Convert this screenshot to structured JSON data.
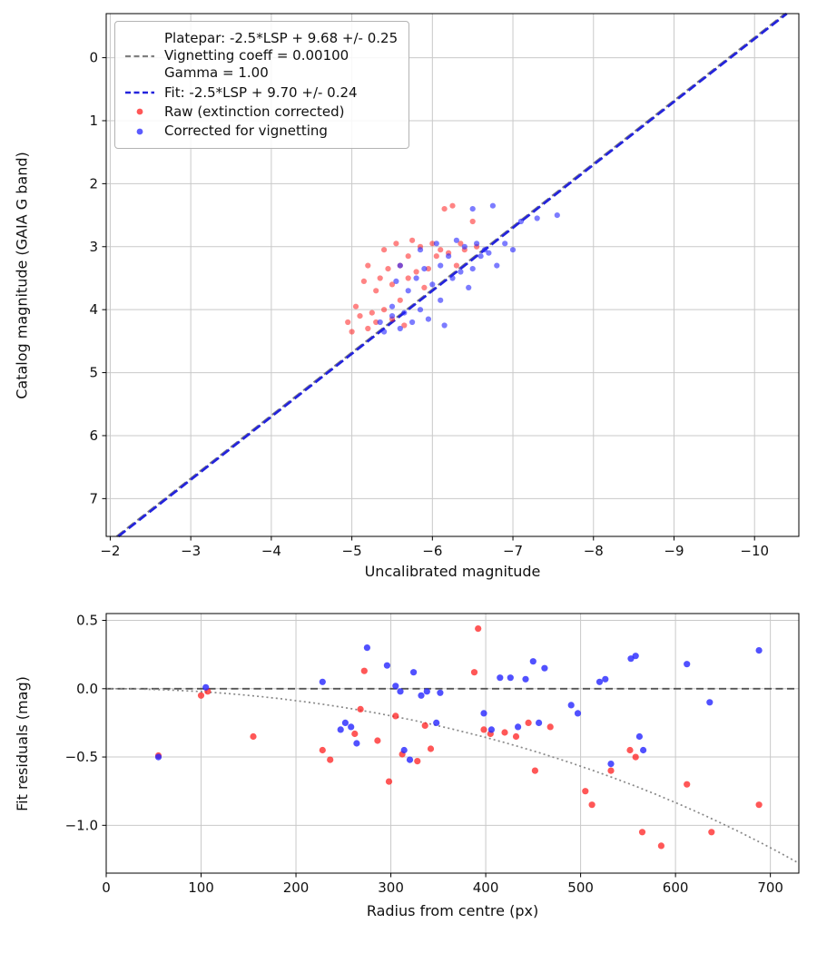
{
  "figure": {
    "background": "#ffffff",
    "spine_color": "#000000",
    "grid_color": "#c9c9c9"
  },
  "chart_data": [
    {
      "type": "scatter",
      "xlabel": "Uncalibrated magnitude",
      "ylabel": "Catalog magnitude (GAIA G band)",
      "x_inverted": true,
      "y_inverted": true,
      "xlim": [
        -1.95,
        -10.55
      ],
      "ylim": [
        -0.7,
        7.6
      ],
      "xticks": [
        -2,
        -3,
        -4,
        -5,
        -6,
        -7,
        -8,
        -9,
        -10
      ],
      "xtick_labels": [
        "−2",
        "−3",
        "−4",
        "−5",
        "−6",
        "−7",
        "−8",
        "−9",
        "−10"
      ],
      "yticks": [
        0,
        1,
        2,
        3,
        4,
        5,
        6,
        7
      ],
      "ytick_labels": [
        "0",
        "1",
        "2",
        "3",
        "4",
        "5",
        "6",
        "7"
      ],
      "grid": true,
      "legend_position": "upper left",
      "lines": [
        {
          "name": "platepar-line",
          "label_lines": [
            "Platepar: -2.5*LSP + 9.68 +/- 0.25",
            "Vignetting coeff = 0.00100",
            "Gamma = 1.00"
          ],
          "slope": 1,
          "intercept": 9.68,
          "color": "#808080",
          "dash": "dashed"
        },
        {
          "name": "fit-line",
          "label": "Fit: -2.5*LSP + 9.70 +/- 0.24",
          "slope": 1,
          "intercept": 9.7,
          "color": "#2323dc",
          "dash": "dashed"
        }
      ],
      "series": [
        {
          "name": "Raw (extinction corrected)",
          "color": "#ff1f1f",
          "alpha": 0.55,
          "points": [
            [
              -4.95,
              4.2
            ],
            [
              -5.0,
              4.35
            ],
            [
              -5.05,
              3.95
            ],
            [
              -5.1,
              4.1
            ],
            [
              -5.15,
              3.55
            ],
            [
              -5.2,
              4.3
            ],
            [
              -5.2,
              3.3
            ],
            [
              -5.25,
              4.05
            ],
            [
              -5.3,
              3.7
            ],
            [
              -5.3,
              4.2
            ],
            [
              -5.35,
              3.5
            ],
            [
              -5.4,
              4.0
            ],
            [
              -5.4,
              3.05
            ],
            [
              -5.45,
              3.35
            ],
            [
              -5.5,
              4.15
            ],
            [
              -5.5,
              3.6
            ],
            [
              -5.55,
              2.95
            ],
            [
              -5.6,
              3.85
            ],
            [
              -5.6,
              3.3
            ],
            [
              -5.65,
              4.25
            ],
            [
              -5.7,
              3.15
            ],
            [
              -5.7,
              3.5
            ],
            [
              -5.75,
              2.9
            ],
            [
              -5.8,
              3.4
            ],
            [
              -5.85,
              3.0
            ],
            [
              -5.9,
              3.65
            ],
            [
              -5.95,
              3.35
            ],
            [
              -6.0,
              2.95
            ],
            [
              -6.05,
              3.15
            ],
            [
              -6.1,
              3.05
            ],
            [
              -6.15,
              2.4
            ],
            [
              -6.2,
              3.1
            ],
            [
              -6.25,
              2.35
            ],
            [
              -6.3,
              3.3
            ],
            [
              -6.35,
              2.95
            ],
            [
              -6.4,
              3.05
            ],
            [
              -6.5,
              2.6
            ],
            [
              -6.55,
              3.0
            ]
          ]
        },
        {
          "name": "Corrected for vignetting",
          "color": "#2525ff",
          "alpha": 0.6,
          "points": [
            [
              -5.35,
              4.2
            ],
            [
              -5.4,
              4.35
            ],
            [
              -5.5,
              3.95
            ],
            [
              -5.5,
              4.1
            ],
            [
              -5.55,
              3.55
            ],
            [
              -5.6,
              4.3
            ],
            [
              -5.6,
              3.3
            ],
            [
              -5.65,
              4.05
            ],
            [
              -5.7,
              3.7
            ],
            [
              -5.75,
              4.2
            ],
            [
              -5.8,
              3.5
            ],
            [
              -5.85,
              4.0
            ],
            [
              -5.85,
              3.05
            ],
            [
              -5.9,
              3.35
            ],
            [
              -5.95,
              4.15
            ],
            [
              -6.0,
              3.6
            ],
            [
              -6.05,
              2.95
            ],
            [
              -6.1,
              3.85
            ],
            [
              -6.1,
              3.3
            ],
            [
              -6.15,
              4.25
            ],
            [
              -6.2,
              3.15
            ],
            [
              -6.25,
              3.5
            ],
            [
              -6.3,
              2.9
            ],
            [
              -6.35,
              3.4
            ],
            [
              -6.4,
              3.0
            ],
            [
              -6.45,
              3.65
            ],
            [
              -6.5,
              3.35
            ],
            [
              -6.5,
              2.4
            ],
            [
              -6.55,
              2.95
            ],
            [
              -6.6,
              3.15
            ],
            [
              -6.65,
              3.05
            ],
            [
              -6.7,
              3.1
            ],
            [
              -6.75,
              2.35
            ],
            [
              -6.8,
              3.3
            ],
            [
              -6.9,
              2.95
            ],
            [
              -7.0,
              3.05
            ],
            [
              -7.1,
              2.6
            ],
            [
              -7.3,
              2.55
            ],
            [
              -7.55,
              2.5
            ]
          ]
        }
      ]
    },
    {
      "type": "scatter",
      "xlabel": "Radius from centre (px)",
      "ylabel": "Fit residuals (mag)",
      "xlim": [
        0,
        730
      ],
      "ylim": [
        0.55,
        -1.35
      ],
      "xticks": [
        0,
        100,
        200,
        300,
        400,
        500,
        600,
        700
      ],
      "xtick_labels": [
        "0",
        "100",
        "200",
        "300",
        "400",
        "500",
        "600",
        "700"
      ],
      "yticks": [
        0.5,
        0.0,
        -0.5,
        -1.0
      ],
      "ytick_labels": [
        "0.5",
        "0.0",
        "−0.5",
        "−1.0"
      ],
      "grid": true,
      "zero_line": {
        "y": 0,
        "color": "#555555",
        "dash": "dashed"
      },
      "vignetting_curve": {
        "coeff": 0.001,
        "color": "#888888",
        "dash": "dotted"
      },
      "series": [
        {
          "name": "Raw (extinction corrected)",
          "color": "#ff1f1f",
          "alpha": 0.75,
          "points": [
            [
              55,
              -0.49
            ],
            [
              100,
              -0.05
            ],
            [
              107,
              -0.02
            ],
            [
              155,
              -0.35
            ],
            [
              228,
              -0.45
            ],
            [
              236,
              -0.52
            ],
            [
              262,
              -0.33
            ],
            [
              268,
              -0.15
            ],
            [
              272,
              0.13
            ],
            [
              286,
              -0.38
            ],
            [
              298,
              -0.68
            ],
            [
              305,
              -0.2
            ],
            [
              312,
              -0.48
            ],
            [
              328,
              -0.53
            ],
            [
              336,
              -0.27
            ],
            [
              342,
              -0.44
            ],
            [
              388,
              0.12
            ],
            [
              392,
              0.44
            ],
            [
              398,
              -0.3
            ],
            [
              405,
              -0.33
            ],
            [
              420,
              -0.32
            ],
            [
              432,
              -0.35
            ],
            [
              445,
              -0.25
            ],
            [
              452,
              -0.6
            ],
            [
              468,
              -0.28
            ],
            [
              505,
              -0.75
            ],
            [
              512,
              -0.85
            ],
            [
              532,
              -0.6
            ],
            [
              552,
              -0.45
            ],
            [
              558,
              -0.5
            ],
            [
              565,
              -1.05
            ],
            [
              585,
              -1.15
            ],
            [
              612,
              -0.7
            ],
            [
              638,
              -1.05
            ],
            [
              688,
              -0.85
            ]
          ]
        },
        {
          "name": "Corrected for vignetting",
          "color": "#2525ff",
          "alpha": 0.8,
          "points": [
            [
              55,
              -0.5
            ],
            [
              105,
              0.01
            ],
            [
              228,
              0.05
            ],
            [
              247,
              -0.3
            ],
            [
              252,
              -0.25
            ],
            [
              258,
              -0.28
            ],
            [
              264,
              -0.4
            ],
            [
              275,
              0.3
            ],
            [
              296,
              0.17
            ],
            [
              305,
              0.02
            ],
            [
              310,
              -0.02
            ],
            [
              314,
              -0.45
            ],
            [
              320,
              -0.52
            ],
            [
              324,
              0.12
            ],
            [
              332,
              -0.05
            ],
            [
              338,
              -0.02
            ],
            [
              348,
              -0.25
            ],
            [
              352,
              -0.03
            ],
            [
              398,
              -0.18
            ],
            [
              406,
              -0.3
            ],
            [
              415,
              0.08
            ],
            [
              426,
              0.08
            ],
            [
              434,
              -0.28
            ],
            [
              442,
              0.07
            ],
            [
              450,
              0.2
            ],
            [
              456,
              -0.25
            ],
            [
              462,
              0.15
            ],
            [
              490,
              -0.12
            ],
            [
              497,
              -0.18
            ],
            [
              520,
              0.05
            ],
            [
              526,
              0.07
            ],
            [
              532,
              -0.55
            ],
            [
              553,
              0.22
            ],
            [
              558,
              0.24
            ],
            [
              562,
              -0.35
            ],
            [
              566,
              -0.45
            ],
            [
              612,
              0.18
            ],
            [
              636,
              -0.1
            ],
            [
              688,
              0.28
            ]
          ]
        }
      ]
    }
  ]
}
